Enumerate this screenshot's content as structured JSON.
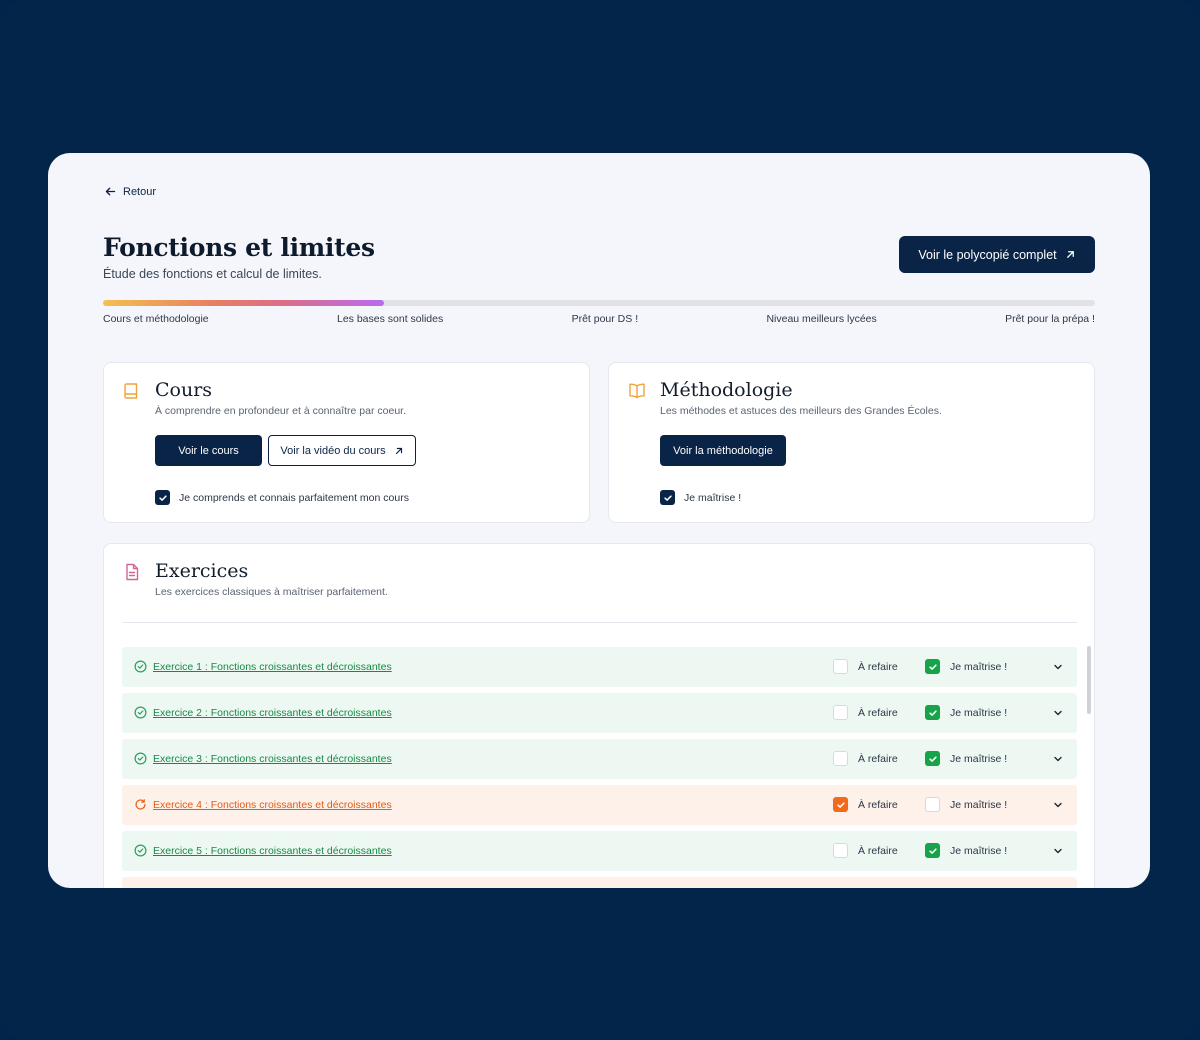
{
  "back": {
    "label": "Retour"
  },
  "header": {
    "title": "Fonctions et limites",
    "subtitle": "Étude des fonctions et calcul de limites.",
    "cta_label": "Voir le polycopié complet"
  },
  "progress": {
    "value": 0.283,
    "labels": [
      "Cours et méthodologie",
      "Les bases sont solides",
      "Prêt pour DS !",
      "Niveau meilleurs lycées",
      "Prêt pour la prépa !"
    ]
  },
  "cours": {
    "title": "Cours",
    "subtitle": "À comprendre en profondeur et à connaître par coeur.",
    "btn_primary": "Voir le cours",
    "btn_secondary": "Voir la vidéo du cours",
    "check_label": "Je comprends et connais parfaitement mon cours",
    "checked": true
  },
  "methodologie": {
    "title": "Méthodologie",
    "subtitle": "Les méthodes et astuces des meilleurs des Grandes Écoles.",
    "btn_primary": "Voir la méthodologie",
    "check_label": "Je maîtrise !",
    "checked": true
  },
  "exercices": {
    "title": "Exercices",
    "subtitle": "Les exercices classiques à maîtriser parfaitement.",
    "refaire_label": "À refaire",
    "maitrise_label": "Je maîtrise !",
    "items": [
      {
        "label": "Exercice 1 : Fonctions croissantes et décroissantes",
        "status": "done"
      },
      {
        "label": "Exercice 2 : Fonctions croissantes et décroissantes",
        "status": "done"
      },
      {
        "label": "Exercice 3 : Fonctions croissantes et décroissantes",
        "status": "done"
      },
      {
        "label": "Exercice 4 : Fonctions croissantes et décroissantes",
        "status": "redo"
      },
      {
        "label": "Exercice 5 : Fonctions croissantes et décroissantes",
        "status": "done"
      }
    ]
  },
  "colors": {
    "navy": "#0a2447",
    "green": "#17a34a",
    "orange": "#f26a1b",
    "background": "#02244a"
  }
}
